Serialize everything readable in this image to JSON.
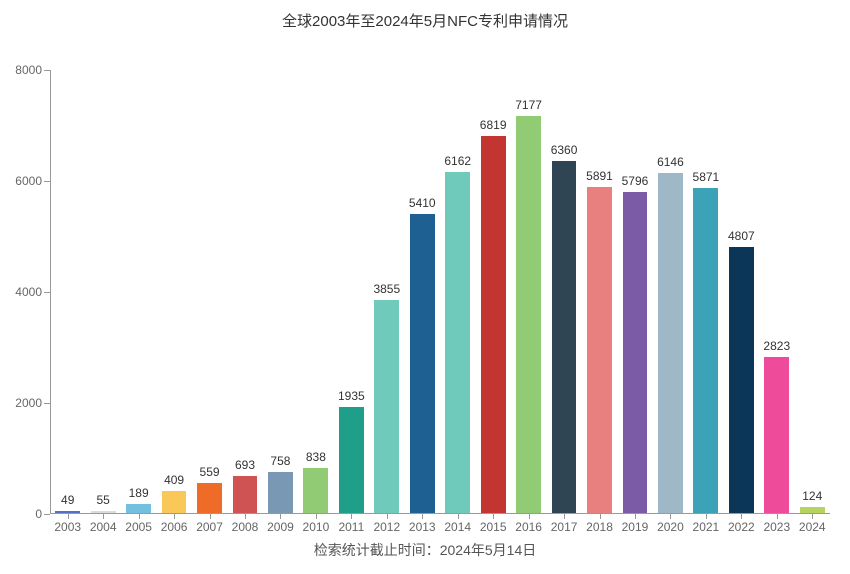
{
  "chart": {
    "type": "bar",
    "title": "全球2003年至2024年5月NFC专利申请情况",
    "caption": "检索统计截止时间：2024年5月14日",
    "title_fontsize": 15,
    "caption_fontsize": 14,
    "label_fontsize": 12,
    "value_fontsize": 12,
    "background_color": "#ffffff",
    "axis_color": "#999999",
    "text_color": "#333333",
    "tick_label_color": "#666666",
    "ylim": [
      0,
      8000
    ],
    "ytick_step": 2000,
    "yticks": [
      0,
      2000,
      4000,
      6000,
      8000
    ],
    "bar_width": 0.7,
    "categories": [
      "2003",
      "2004",
      "2005",
      "2006",
      "2007",
      "2008",
      "2009",
      "2010",
      "2011",
      "2012",
      "2013",
      "2014",
      "2015",
      "2016",
      "2017",
      "2018",
      "2019",
      "2020",
      "2021",
      "2022",
      "2023",
      "2024"
    ],
    "values": [
      49,
      55,
      189,
      409,
      559,
      693,
      758,
      838,
      1935,
      3855,
      5410,
      6162,
      6819,
      7177,
      6360,
      5891,
      5796,
      6146,
      5871,
      4807,
      2823,
      124
    ],
    "bar_colors": [
      "#5470c6",
      "#dcdcdc",
      "#73c0de",
      "#fac858",
      "#ee6c28",
      "#d05353",
      "#7898b3",
      "#91cc75",
      "#1f9e89",
      "#6fcabb",
      "#1e6091",
      "#6fcabb",
      "#c23531",
      "#91cc75",
      "#2f4554",
      "#e88080",
      "#7b5ba6",
      "#9fb8c8",
      "#3ba2b8",
      "#0c3658",
      "#ee4b9b",
      "#b8d460"
    ]
  }
}
